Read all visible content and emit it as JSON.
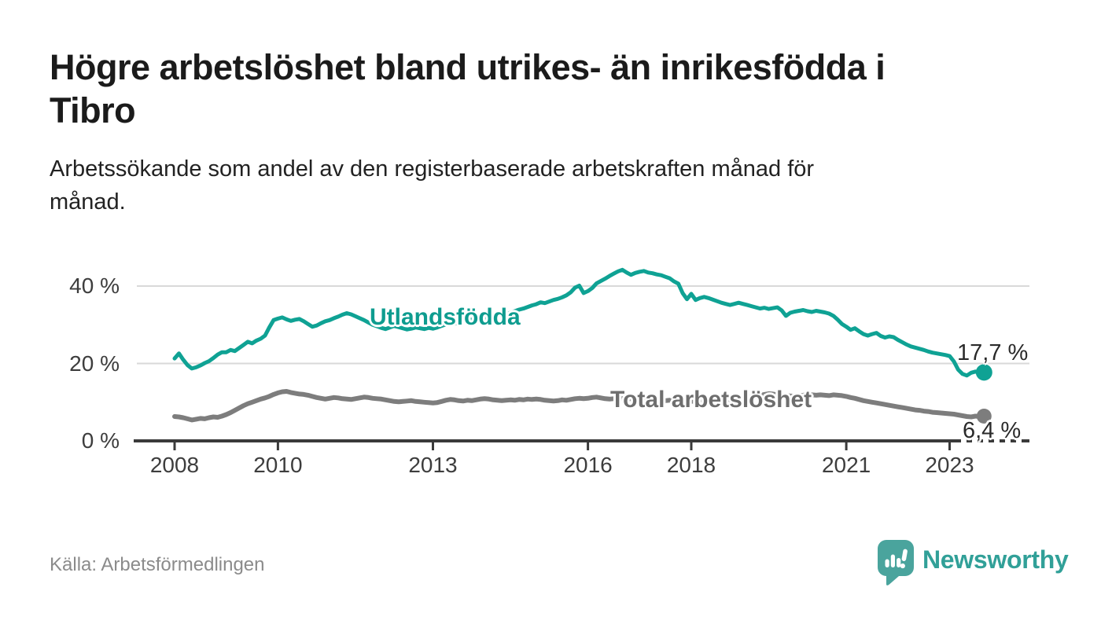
{
  "header": {
    "title_lines": [
      "Högre arbetslöshet bland utrikes- än inrikesfödda i",
      "Tibro"
    ],
    "subtitle_lines": [
      "Arbetssökande som andel av den registerbaserade arbetskraften månad för",
      "månad."
    ]
  },
  "footer": {
    "source": "Källa: Arbetsförmedlingen",
    "brand_name": "Newsworthy"
  },
  "branding": {
    "logo_icon": "bar-chart-speech-bubble-icon",
    "icon_color": "#4aa49d",
    "word_color": "#31a098"
  },
  "colors": {
    "accent_teal": "#0fa294",
    "line_gray": "#7d7d7d",
    "grid": "#d9d9d9",
    "axis": "#3a3a3a",
    "tick_text": "#3d3d3d",
    "background": "#ffffff"
  },
  "chart_data": {
    "type": "line",
    "unit": "%",
    "frequency": "monthly",
    "x_start_year": 2008,
    "x_start_month": 1,
    "x_end_year": 2023,
    "x_end_month": 9,
    "x_tick_years": [
      2008,
      2010,
      2013,
      2016,
      2018,
      2021,
      2023
    ],
    "y_ticks": [
      {
        "value": 0,
        "label": "0 %"
      },
      {
        "value": 20,
        "label": "20 %"
      },
      {
        "value": 40,
        "label": "40 %"
      }
    ],
    "ylim": [
      0,
      46
    ],
    "grid": "horizontal",
    "legend_position": "inline-labels",
    "series": [
      {
        "id": "utlandsfodda",
        "label": "Utlandsfödda",
        "color": "#0fa294",
        "label_color": "#0e9c8f",
        "end_label": "17,7 %",
        "end_value": 17.7,
        "values": [
          21.3,
          22.6,
          21.0,
          19.6,
          18.7,
          19.0,
          19.5,
          20.1,
          20.6,
          21.4,
          22.3,
          22.9,
          22.9,
          23.5,
          23.2,
          24.0,
          24.8,
          25.6,
          25.2,
          25.9,
          26.4,
          27.2,
          29.3,
          31.2,
          31.6,
          31.9,
          31.4,
          31.0,
          31.3,
          31.5,
          30.9,
          30.2,
          29.5,
          29.8,
          30.4,
          30.9,
          31.2,
          31.7,
          32.1,
          32.6,
          33.0,
          32.7,
          32.2,
          31.7,
          31.2,
          30.6,
          30.0,
          29.6,
          29.2,
          28.9,
          29.3,
          29.7,
          29.4,
          29.1,
          28.8,
          29.0,
          29.3,
          29.1,
          28.9,
          29.2,
          29.0,
          29.3,
          29.7,
          30.1,
          30.5,
          30.3,
          30.7,
          31.1,
          31.5,
          31.3,
          31.7,
          32.0,
          31.8,
          32.2,
          32.0,
          32.4,
          32.9,
          32.7,
          33.1,
          33.5,
          33.9,
          34.2,
          34.6,
          35.0,
          35.3,
          35.8,
          35.6,
          36.0,
          36.4,
          36.7,
          37.1,
          37.6,
          38.4,
          39.6,
          40.1,
          38.2,
          38.7,
          39.5,
          40.7,
          41.3,
          41.9,
          42.6,
          43.2,
          43.8,
          44.2,
          43.5,
          42.9,
          43.4,
          43.7,
          43.9,
          43.5,
          43.3,
          43.0,
          42.8,
          42.4,
          42.0,
          41.2,
          40.6,
          38.2,
          36.6,
          38.0,
          36.4,
          36.9,
          37.2,
          36.9,
          36.5,
          36.1,
          35.7,
          35.4,
          35.1,
          35.4,
          35.7,
          35.4,
          35.1,
          34.8,
          34.5,
          34.2,
          34.4,
          34.1,
          34.3,
          34.5,
          33.7,
          32.3,
          33.1,
          33.4,
          33.6,
          33.8,
          33.5,
          33.3,
          33.6,
          33.4,
          33.2,
          32.9,
          32.3,
          31.3,
          30.2,
          29.5,
          28.7,
          29.1,
          28.3,
          27.6,
          27.2,
          27.6,
          27.9,
          27.1,
          26.7,
          27.0,
          26.8,
          26.1,
          25.5,
          24.9,
          24.4,
          24.1,
          23.8,
          23.5,
          23.1,
          22.8,
          22.6,
          22.4,
          22.2,
          21.9,
          20.5,
          18.4,
          17.3,
          16.9,
          17.6,
          17.9,
          17.5,
          17.7
        ]
      },
      {
        "id": "total-arbetsloshet",
        "label": "Total arbetslöshet",
        "color": "#7d7d7d",
        "label_color": "#6e6e6e",
        "end_label": "6,4 %",
        "end_value": 6.4,
        "values": [
          6.3,
          6.2,
          6.0,
          5.7,
          5.4,
          5.6,
          5.8,
          5.7,
          6.0,
          6.2,
          6.1,
          6.4,
          6.8,
          7.3,
          7.9,
          8.5,
          9.1,
          9.6,
          10.0,
          10.4,
          10.8,
          11.1,
          11.5,
          12.0,
          12.4,
          12.7,
          12.8,
          12.5,
          12.3,
          12.1,
          12.0,
          11.8,
          11.5,
          11.2,
          11.0,
          10.8,
          11.0,
          11.2,
          11.1,
          10.9,
          10.8,
          10.7,
          10.9,
          11.1,
          11.3,
          11.2,
          11.0,
          10.9,
          10.8,
          10.6,
          10.4,
          10.2,
          10.1,
          10.2,
          10.3,
          10.4,
          10.2,
          10.1,
          10.0,
          9.9,
          9.8,
          9.9,
          10.2,
          10.5,
          10.7,
          10.6,
          10.4,
          10.3,
          10.5,
          10.4,
          10.6,
          10.8,
          10.9,
          10.8,
          10.6,
          10.5,
          10.4,
          10.5,
          10.6,
          10.5,
          10.7,
          10.6,
          10.8,
          10.7,
          10.8,
          10.7,
          10.5,
          10.4,
          10.3,
          10.4,
          10.6,
          10.5,
          10.7,
          10.9,
          11.0,
          10.9,
          11.0,
          11.2,
          11.3,
          11.1,
          10.9,
          10.8,
          10.9,
          11.0,
          10.9,
          10.8,
          10.9,
          11.0,
          10.9,
          10.8,
          10.7,
          10.6,
          10.4,
          10.3,
          10.4,
          10.5,
          10.4,
          10.3,
          10.2,
          10.3,
          10.2,
          10.3,
          10.4,
          10.3,
          10.2,
          10.4,
          10.5,
          10.4,
          10.6,
          10.7,
          10.8,
          10.9,
          11.0,
          11.2,
          11.4,
          11.6,
          11.8,
          12.0,
          12.2,
          12.1,
          11.9,
          11.8,
          11.7,
          11.6,
          11.5,
          11.6,
          11.8,
          12.0,
          11.9,
          11.8,
          11.9,
          11.8,
          11.7,
          11.9,
          11.8,
          11.7,
          11.5,
          11.2,
          11.0,
          10.7,
          10.4,
          10.2,
          10.0,
          9.8,
          9.6,
          9.4,
          9.2,
          9.0,
          8.8,
          8.6,
          8.4,
          8.2,
          8.0,
          7.9,
          7.7,
          7.6,
          7.4,
          7.3,
          7.2,
          7.1,
          7.0,
          6.9,
          6.7,
          6.5,
          6.3,
          6.2,
          6.4,
          6.3,
          6.4
        ]
      }
    ]
  }
}
